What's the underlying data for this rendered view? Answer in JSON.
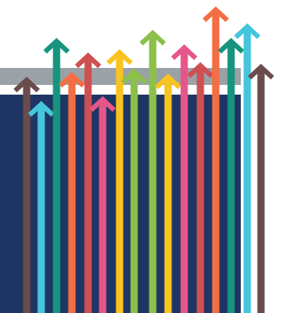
{
  "colors": {
    "background": "#ffffff",
    "panel_navy": "#1f3564",
    "bar_gray": "#9aa1a7",
    "brown": "#6b4c4c",
    "cyan": "#45c6dd",
    "teal": "#17947e",
    "orange": "#f46e43",
    "red": "#cf5052",
    "pink": "#e5578a",
    "yellow": "#f9c320",
    "green": "#8cc04a"
  },
  "arrows": [
    {
      "name": "arrow-brown-1",
      "color": "brown"
    },
    {
      "name": "arrow-cyan-1",
      "color": "cyan"
    },
    {
      "name": "arrow-teal-1",
      "color": "teal"
    },
    {
      "name": "arrow-orange-1",
      "color": "orange"
    },
    {
      "name": "arrow-red-1",
      "color": "red"
    },
    {
      "name": "arrow-pink-1",
      "color": "pink"
    },
    {
      "name": "arrow-yellow-1",
      "color": "yellow"
    },
    {
      "name": "arrow-green-1",
      "color": "green"
    },
    {
      "name": "arrow-green-2",
      "color": "green"
    },
    {
      "name": "arrow-yellow-2",
      "color": "yellow"
    },
    {
      "name": "arrow-pink-2",
      "color": "pink"
    },
    {
      "name": "arrow-red-2",
      "color": "red"
    },
    {
      "name": "arrow-orange-2",
      "color": "orange"
    },
    {
      "name": "arrow-teal-2",
      "color": "teal"
    },
    {
      "name": "arrow-cyan-2",
      "color": "cyan"
    },
    {
      "name": "arrow-brown-2",
      "color": "brown"
    }
  ]
}
